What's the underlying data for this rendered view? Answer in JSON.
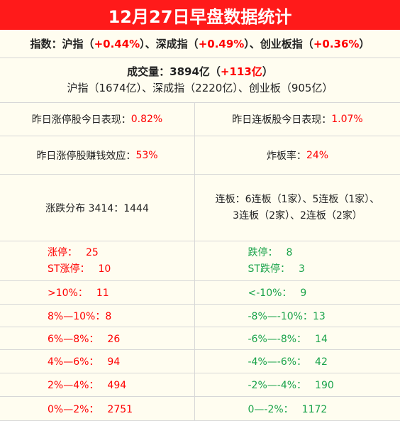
{
  "title": "12月27日早盘数据统计",
  "indices": {
    "prefix": "指数：沪指（",
    "sh_change": "+0.44%",
    "mid1": "）、深成指（",
    "sz_change": "+0.49%",
    "mid2": "）、创业板指（",
    "cyb_change": "+0.36%",
    "suffix": "）"
  },
  "volume": {
    "prefix": "成交量：3894亿（",
    "change": "+113亿",
    "suffix": "）",
    "breakdown": "沪指（1674亿）、深成指（2220亿）、创业板（905亿）"
  },
  "stats": {
    "limit_up_perf_label": "昨日涨停股今日表现：",
    "limit_up_perf_value": "0.82%",
    "consec_perf_label": "昨日连板股今日表现：",
    "consec_perf_value": "1.07%",
    "money_effect_label": "昨日涨停股赚钱效应：",
    "money_effect_value": "53%",
    "break_rate_label": "炸板率：",
    "break_rate_value": "24%"
  },
  "distribution": {
    "updown_text": "涨跌分布 3414：1444",
    "consec_line1": "连板：6连板（1家）、5连板（1家）、",
    "consec_line2": "3连板（2家）、2连板（2家）"
  },
  "limits": {
    "up_label": "涨停：",
    "up_value": "25",
    "st_up_label": "ST涨停：",
    "st_up_value": "10",
    "down_label": "跌停：",
    "down_value": "8",
    "st_down_label": "ST跌停：",
    "st_down_value": "3"
  },
  "ranges": [
    {
      "up_label": ">10%：",
      "up_value": "11",
      "down_label": "<-10%：",
      "down_value": "9"
    },
    {
      "up_label": "8%—10%：",
      "up_value": "8",
      "down_label": "-8%—-10%：",
      "down_value": "13"
    },
    {
      "up_label": "6%—8%：",
      "up_value": "26",
      "down_label": "-6%—-8%：",
      "down_value": "14"
    },
    {
      "up_label": "4%—6%：",
      "up_value": "94",
      "down_label": "-4%—-6%：",
      "down_value": "42"
    },
    {
      "up_label": "2%—4%：",
      "up_value": "494",
      "down_label": "-2%—-4%：",
      "down_value": "190"
    },
    {
      "up_label": "0%—2%：",
      "up_value": "2751",
      "down_label": "0—-2%：",
      "down_value": "1172"
    }
  ]
}
